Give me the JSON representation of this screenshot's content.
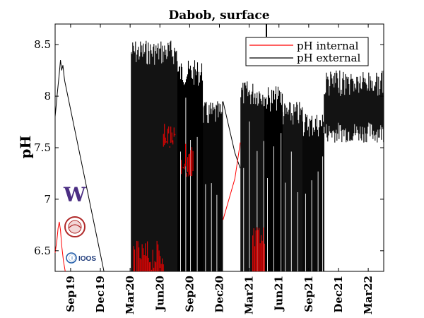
{
  "chart_data": {
    "type": "line",
    "title": "Dabob, surface",
    "xlabel": "",
    "ylabel": "pH",
    "xlim": [
      2019.54,
      2022.3
    ],
    "ylim": [
      6.3,
      8.7
    ],
    "yticks": [
      6.5,
      7,
      7.5,
      8,
      8.5
    ],
    "ytick_labels": [
      "6.5",
      "7",
      "7.5",
      "8",
      "8.5"
    ],
    "xticks": [
      {
        "label": "Sep19",
        "x": 2019.67
      },
      {
        "label": "Dec19",
        "x": 2019.92
      },
      {
        "label": "Mar20",
        "x": 2020.17
      },
      {
        "label": "Jun20",
        "x": 2020.42
      },
      {
        "label": "Sep20",
        "x": 2020.67
      },
      {
        "label": "Dec20",
        "x": 2020.92
      },
      {
        "label": "Mar21",
        "x": 2021.17
      },
      {
        "label": "Jun21",
        "x": 2021.42
      },
      {
        "label": "Sep21",
        "x": 2021.67
      },
      {
        "label": "Dec21",
        "x": 2021.92
      },
      {
        "label": "Mar22",
        "x": 2022.17
      }
    ],
    "legend": {
      "position": "top-right",
      "entries": [
        {
          "label": "pH internal",
          "color": "#ff0000"
        },
        {
          "label": "pH external",
          "color": "#000000"
        }
      ]
    },
    "series": [
      {
        "name": "pH external",
        "color": "#000000",
        "points": [
          [
            2019.54,
            7.8
          ],
          [
            2019.56,
            8.05
          ],
          [
            2019.575,
            8.22
          ],
          [
            2019.585,
            8.35
          ],
          [
            2019.595,
            8.25
          ],
          [
            2019.605,
            8.3
          ],
          [
            2019.615,
            8.2
          ],
          [
            2019.62,
            8.15
          ],
          [
            2019.95,
            6.3
          ]
        ]
      },
      {
        "name": "pH internal",
        "color": "#ff0000",
        "points": [
          [
            2019.54,
            6.48
          ],
          [
            2019.555,
            6.6
          ],
          [
            2019.565,
            6.72
          ],
          [
            2019.575,
            6.78
          ],
          [
            2019.585,
            6.7
          ],
          [
            2019.595,
            6.55
          ],
          [
            2019.61,
            6.4
          ],
          [
            2019.625,
            6.3
          ]
        ]
      },
      {
        "name": "pH external",
        "color": "#000000",
        "points": [
          [
            2020.95,
            7.95
          ],
          [
            2021.05,
            7.45
          ],
          [
            2021.095,
            7.3
          ]
        ]
      },
      {
        "name": "pH internal",
        "color": "#ff0000",
        "points": [
          [
            2020.95,
            6.8
          ],
          [
            2021.05,
            7.2
          ],
          [
            2021.095,
            7.55
          ]
        ]
      }
    ],
    "dense_bands_external": [
      {
        "x0": 2020.18,
        "x1": 2020.57,
        "ymin": 6.3,
        "ymax": 8.55
      },
      {
        "x0": 2020.57,
        "x1": 2020.78,
        "ymin": 6.3,
        "ymax": 8.35
      },
      {
        "x0": 2020.78,
        "x1": 2020.95,
        "ymin": 6.3,
        "ymax": 7.95
      },
      {
        "x0": 2021.1,
        "x1": 2021.3,
        "ymin": 6.3,
        "ymax": 8.15
      },
      {
        "x0": 2021.3,
        "x1": 2021.45,
        "ymin": 6.3,
        "ymax": 8.1
      },
      {
        "x0": 2021.45,
        "x1": 2021.62,
        "ymin": 6.3,
        "ymax": 7.95
      },
      {
        "x0": 2021.62,
        "x1": 2021.8,
        "ymin": 6.3,
        "ymax": 7.85
      },
      {
        "x0": 2021.8,
        "x1": 2022.3,
        "ymin": 7.55,
        "ymax": 8.25
      }
    ],
    "dense_bands_internal": [
      {
        "x0": 2020.2,
        "x1": 2020.45,
        "ymin": 6.3,
        "ymax": 6.6
      },
      {
        "x0": 2020.45,
        "x1": 2020.55,
        "ymin": 7.5,
        "ymax": 7.8
      },
      {
        "x0": 2020.6,
        "x1": 2020.7,
        "ymin": 7.2,
        "ymax": 7.55
      },
      {
        "x0": 2021.2,
        "x1": 2021.3,
        "ymin": 6.3,
        "ymax": 6.75
      }
    ]
  },
  "logos": [
    {
      "name": "uw-logo",
      "text": "W"
    },
    {
      "name": "noaa-logo",
      "text": ""
    },
    {
      "name": "ioos-logo",
      "text": "IOOS"
    }
  ]
}
